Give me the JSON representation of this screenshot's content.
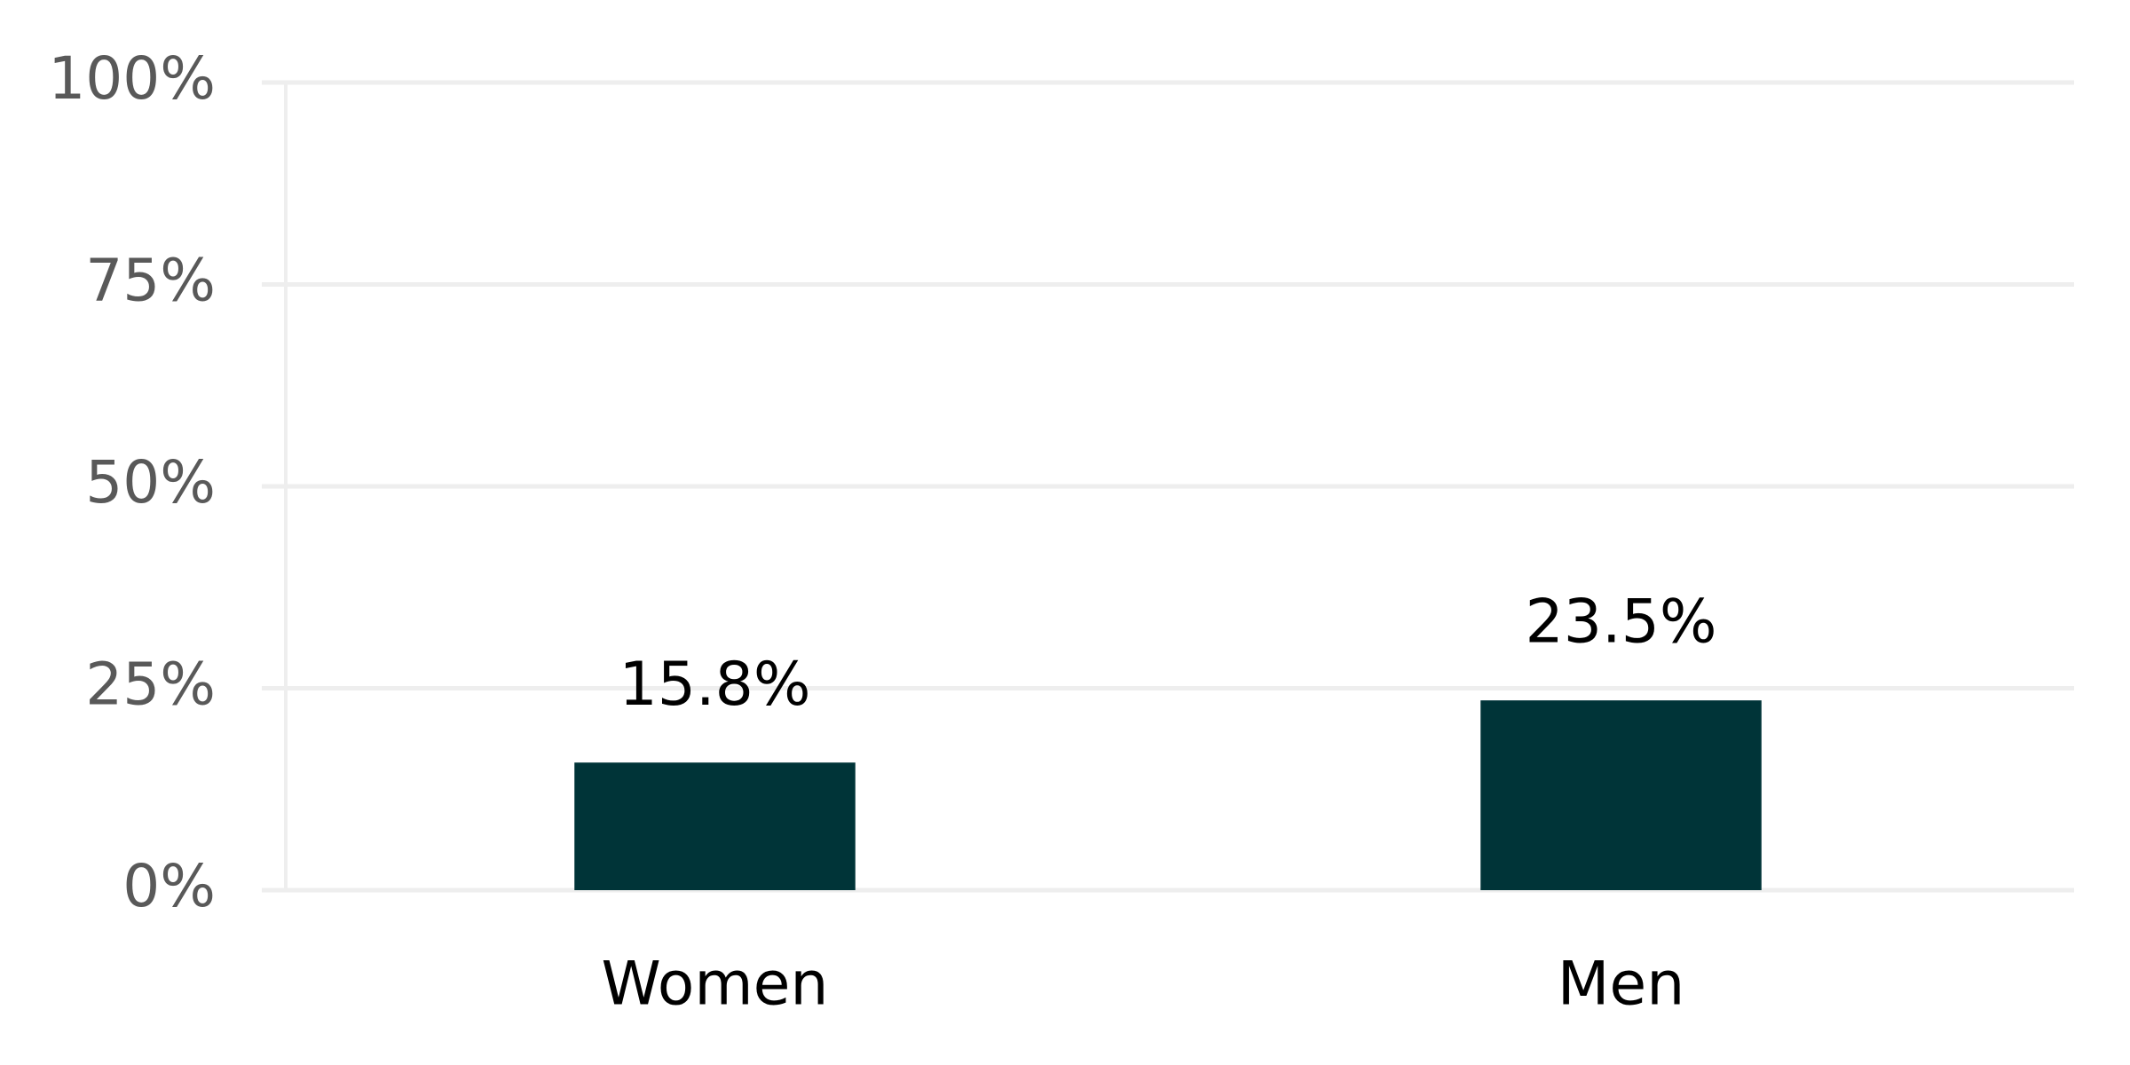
{
  "chart_data": {
    "type": "bar",
    "categories": [
      "Women",
      "Men"
    ],
    "values": [
      15.8,
      23.5
    ],
    "value_labels": [
      "15.8%",
      "23.5%"
    ],
    "color": "#003438",
    "ylim": [
      0,
      100
    ],
    "yticks": [
      {
        "value": 0,
        "label": "0%"
      },
      {
        "value": 25,
        "label": "25%"
      },
      {
        "value": 50,
        "label": "50%"
      },
      {
        "value": 75,
        "label": "75%"
      },
      {
        "value": 100,
        "label": "100%"
      }
    ],
    "grid": true
  }
}
